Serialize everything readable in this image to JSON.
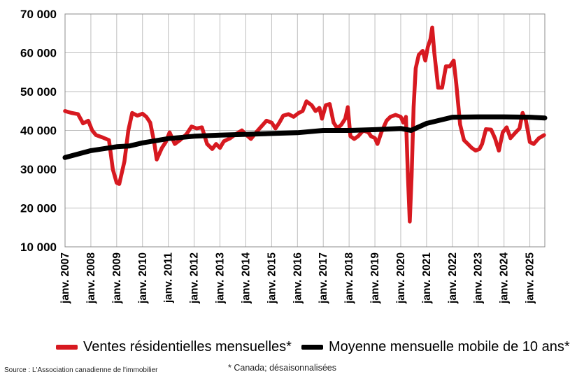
{
  "chart_data": {
    "type": "line",
    "title": "",
    "xlabel": "",
    "ylabel": "",
    "ylim": [
      10000,
      70000
    ],
    "yticks": [
      10000,
      20000,
      30000,
      40000,
      50000,
      60000,
      70000
    ],
    "ytick_labels": [
      "10 000",
      "20 000",
      "30 000",
      "40 000",
      "50 000",
      "60 000",
      "70 000"
    ],
    "xlim": [
      2007.0,
      2025.58
    ],
    "xtick_positions": [
      2007,
      2008,
      2009,
      2010,
      2011,
      2012,
      2013,
      2014,
      2015,
      2016,
      2017,
      2018,
      2019,
      2020,
      2021,
      2022,
      2023,
      2024,
      2025
    ],
    "xtick_labels": [
      "janv. 2007",
      "janv. 2008",
      "janv. 2009",
      "janv. 2010",
      "janv. 2011",
      "janv. 2012",
      "janv. 2013",
      "janv. 2014",
      "janv. 2015",
      "janv. 2016",
      "janv. 2017",
      "janv. 2018",
      "janv. 2019",
      "janv. 2020",
      "janv. 2021",
      "janv. 2022",
      "janv. 2023",
      "janv. 2024",
      "janv. 2025"
    ],
    "grid": true,
    "legend_position": "bottom",
    "series": [
      {
        "name": "Ventes résidentielles mensuelles*",
        "color": "#d71920",
        "points": [
          [
            2007.0,
            45000
          ],
          [
            2007.25,
            44500
          ],
          [
            2007.5,
            44200
          ],
          [
            2007.7,
            41800
          ],
          [
            2007.9,
            42500
          ],
          [
            2008.05,
            40000
          ],
          [
            2008.2,
            38800
          ],
          [
            2008.45,
            38200
          ],
          [
            2008.7,
            37500
          ],
          [
            2008.85,
            30000
          ],
          [
            2009.0,
            26500
          ],
          [
            2009.1,
            26200
          ],
          [
            2009.3,
            32000
          ],
          [
            2009.45,
            40000
          ],
          [
            2009.6,
            44500
          ],
          [
            2009.8,
            43800
          ],
          [
            2010.0,
            44300
          ],
          [
            2010.15,
            43500
          ],
          [
            2010.3,
            42000
          ],
          [
            2010.45,
            37000
          ],
          [
            2010.55,
            32500
          ],
          [
            2010.75,
            35500
          ],
          [
            2010.9,
            37000
          ],
          [
            2011.05,
            39500
          ],
          [
            2011.25,
            36500
          ],
          [
            2011.45,
            37500
          ],
          [
            2011.7,
            39000
          ],
          [
            2011.9,
            41000
          ],
          [
            2012.1,
            40500
          ],
          [
            2012.3,
            40800
          ],
          [
            2012.5,
            36500
          ],
          [
            2012.7,
            35200
          ],
          [
            2012.85,
            36500
          ],
          [
            2013.0,
            35500
          ],
          [
            2013.15,
            37200
          ],
          [
            2013.4,
            38000
          ],
          [
            2013.6,
            39000
          ],
          [
            2013.85,
            40000
          ],
          [
            2014.0,
            39000
          ],
          [
            2014.2,
            37800
          ],
          [
            2014.4,
            39500
          ],
          [
            2014.6,
            41000
          ],
          [
            2014.8,
            42500
          ],
          [
            2015.0,
            42000
          ],
          [
            2015.15,
            40500
          ],
          [
            2015.3,
            42000
          ],
          [
            2015.45,
            43800
          ],
          [
            2015.65,
            44200
          ],
          [
            2015.85,
            43500
          ],
          [
            2016.05,
            44500
          ],
          [
            2016.2,
            45000
          ],
          [
            2016.35,
            47500
          ],
          [
            2016.55,
            46500
          ],
          [
            2016.7,
            45000
          ],
          [
            2016.85,
            45800
          ],
          [
            2016.95,
            43000
          ],
          [
            2017.1,
            46500
          ],
          [
            2017.25,
            46800
          ],
          [
            2017.4,
            42000
          ],
          [
            2017.55,
            40500
          ],
          [
            2017.7,
            41500
          ],
          [
            2017.85,
            43000
          ],
          [
            2017.95,
            46000
          ],
          [
            2018.05,
            38500
          ],
          [
            2018.2,
            37800
          ],
          [
            2018.35,
            38500
          ],
          [
            2018.55,
            40000
          ],
          [
            2018.75,
            39500
          ],
          [
            2018.85,
            38500
          ],
          [
            2019.0,
            38000
          ],
          [
            2019.1,
            36500
          ],
          [
            2019.25,
            39500
          ],
          [
            2019.45,
            42500
          ],
          [
            2019.6,
            43500
          ],
          [
            2019.8,
            44000
          ],
          [
            2020.0,
            43500
          ],
          [
            2020.1,
            42000
          ],
          [
            2020.2,
            43500
          ],
          [
            2020.28,
            28000
          ],
          [
            2020.35,
            16500
          ],
          [
            2020.42,
            28000
          ],
          [
            2020.5,
            46000
          ],
          [
            2020.58,
            56000
          ],
          [
            2020.7,
            59500
          ],
          [
            2020.85,
            60500
          ],
          [
            2020.95,
            58000
          ],
          [
            2021.05,
            61500
          ],
          [
            2021.15,
            63500
          ],
          [
            2021.22,
            66500
          ],
          [
            2021.3,
            60000
          ],
          [
            2021.45,
            51000
          ],
          [
            2021.6,
            51000
          ],
          [
            2021.75,
            56500
          ],
          [
            2021.9,
            56500
          ],
          [
            2022.05,
            58000
          ],
          [
            2022.15,
            52000
          ],
          [
            2022.3,
            41500
          ],
          [
            2022.45,
            37500
          ],
          [
            2022.6,
            36500
          ],
          [
            2022.75,
            35500
          ],
          [
            2022.9,
            34800
          ],
          [
            2023.05,
            35200
          ],
          [
            2023.15,
            36500
          ],
          [
            2023.3,
            40300
          ],
          [
            2023.5,
            40200
          ],
          [
            2023.65,
            38000
          ],
          [
            2023.8,
            34800
          ],
          [
            2023.95,
            39500
          ],
          [
            2024.1,
            40800
          ],
          [
            2024.25,
            38000
          ],
          [
            2024.45,
            39500
          ],
          [
            2024.6,
            40500
          ],
          [
            2024.72,
            44500
          ],
          [
            2024.85,
            42500
          ],
          [
            2025.0,
            37000
          ],
          [
            2025.15,
            36500
          ],
          [
            2025.35,
            38000
          ],
          [
            2025.55,
            38800
          ]
        ]
      },
      {
        "name": "Moyenne mensuelle mobile de 10 ans*",
        "color": "#000000",
        "points": [
          [
            2007.0,
            33000
          ],
          [
            2008.0,
            34800
          ],
          [
            2009.0,
            35800
          ],
          [
            2009.5,
            36000
          ],
          [
            2010.0,
            36800
          ],
          [
            2011.0,
            37900
          ],
          [
            2012.0,
            38500
          ],
          [
            2013.0,
            38800
          ],
          [
            2014.0,
            39000
          ],
          [
            2015.0,
            39200
          ],
          [
            2016.0,
            39400
          ],
          [
            2017.0,
            40000
          ],
          [
            2018.0,
            40000
          ],
          [
            2019.0,
            40200
          ],
          [
            2020.0,
            40500
          ],
          [
            2020.4,
            40000
          ],
          [
            2021.0,
            41800
          ],
          [
            2022.0,
            43400
          ],
          [
            2023.0,
            43500
          ],
          [
            2024.0,
            43500
          ],
          [
            2025.0,
            43400
          ],
          [
            2025.58,
            43200
          ]
        ]
      }
    ]
  },
  "legend": {
    "items": [
      {
        "label": "Ventes résidentielles mensuelles*",
        "color": "#d71920"
      },
      {
        "label": "Moyenne mensuelle mobile de 10 ans*",
        "color": "#000000"
      }
    ]
  },
  "footnote": "* Canada; désaisonnalisées",
  "source": "Source : L'Association canadienne de l'immobilier"
}
